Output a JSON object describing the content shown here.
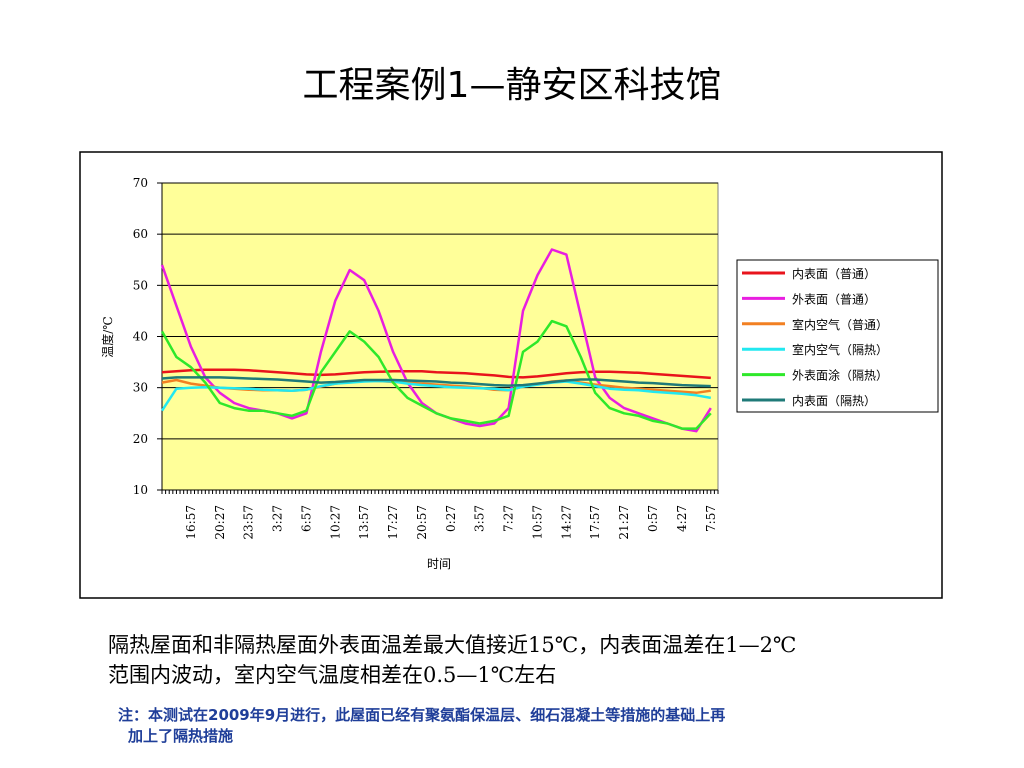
{
  "title": "工程案例1—静安区科技馆",
  "chart_data": {
    "type": "line",
    "ylabel": "温度/℃",
    "xlabel": "时间",
    "ylim": [
      10,
      70
    ],
    "yticks": [
      10,
      20,
      30,
      40,
      50,
      60,
      70
    ],
    "grid": true,
    "plot_color": "#ffff99",
    "categories": [
      null,
      null,
      "16:57",
      null,
      "20:27",
      null,
      "23:57",
      null,
      "3:27",
      null,
      "6:57",
      null,
      "10:27",
      null,
      "13:57",
      null,
      "17:27",
      null,
      "20:57",
      null,
      "0:27",
      null,
      "3:57",
      null,
      "7:27",
      null,
      "10:57",
      null,
      "14:27",
      null,
      "17:57",
      null,
      "21:27",
      null,
      "0:57",
      null,
      "4:27",
      null,
      "7:57"
    ],
    "series": [
      {
        "name": "内表面（普通）",
        "color": "#e8141c",
        "values": [
          33,
          33.2,
          33.4,
          33.5,
          33.5,
          33.5,
          33.4,
          33.2,
          33,
          32.8,
          32.6,
          32.5,
          32.6,
          32.8,
          33,
          33.1,
          33.2,
          33.2,
          33.2,
          33,
          32.9,
          32.8,
          32.6,
          32.4,
          32.1,
          32,
          32.2,
          32.5,
          32.8,
          33,
          33.1,
          33.1,
          33,
          32.9,
          32.7,
          32.5,
          32.3,
          32.1,
          31.9
        ]
      },
      {
        "name": "外表面（普通）",
        "color": "#e81ee0",
        "values": [
          54,
          46,
          38,
          32,
          29,
          27,
          26,
          25.5,
          25,
          24,
          25,
          37,
          47,
          53,
          51,
          45,
          37,
          31,
          27,
          25,
          24,
          23,
          22.5,
          23,
          26,
          45,
          52,
          57,
          56,
          44,
          32,
          28,
          26,
          25,
          24,
          23,
          22,
          21.5,
          26
        ]
      },
      {
        "name": "室内空气（普通）",
        "color": "#f28022",
        "values": [
          31,
          31.5,
          30.8,
          30.4,
          30,
          29.8,
          29.6,
          29.5,
          29.5,
          29.4,
          29.6,
          30.2,
          30.8,
          31.2,
          31.4,
          31.3,
          31.1,
          31,
          30.8,
          30.6,
          30.4,
          30.2,
          30,
          29.6,
          29.5,
          30.2,
          30.7,
          31.2,
          31.4,
          31,
          30.6,
          30.3,
          30,
          29.8,
          29.6,
          29.4,
          29.2,
          29,
          29.4
        ]
      },
      {
        "name": "室内空气（隔热）",
        "color": "#22e8f0",
        "values": [
          25.5,
          29.8,
          30,
          30.1,
          30,
          29.9,
          29.8,
          29.6,
          29.5,
          29.4,
          29.6,
          30.3,
          30.8,
          31,
          31.2,
          31.3,
          31.2,
          30.8,
          30.5,
          30.3,
          30.1,
          30,
          29.9,
          29.8,
          29.5,
          30.2,
          30.6,
          31,
          31.2,
          30.8,
          30.3,
          29.8,
          29.6,
          29.5,
          29.2,
          29,
          28.8,
          28.5,
          28
        ]
      },
      {
        "name": "外表面涂（隔热）",
        "color": "#2ee82a",
        "values": [
          41,
          36,
          34,
          31,
          27,
          26,
          25.5,
          25.5,
          25,
          24.5,
          25.5,
          33,
          37,
          41,
          39,
          36,
          31,
          28,
          26.5,
          25,
          24,
          23.5,
          23,
          23.5,
          24.5,
          37,
          39,
          43,
          42,
          36,
          29,
          26,
          25,
          24.5,
          23.5,
          23,
          22,
          22,
          25
        ]
      },
      {
        "name": "内表面（隔热）",
        "color": "#1f7a78",
        "values": [
          31.8,
          32,
          32,
          32,
          32,
          31.9,
          31.8,
          31.7,
          31.6,
          31.4,
          31.2,
          31,
          31.1,
          31.3,
          31.5,
          31.5,
          31.5,
          31.4,
          31.3,
          31.2,
          31,
          30.9,
          30.7,
          30.5,
          30.4,
          30.5,
          30.8,
          31.1,
          31.4,
          31.6,
          31.6,
          31.4,
          31.2,
          31,
          30.9,
          30.7,
          30.5,
          30.4,
          30.3
        ]
      }
    ]
  },
  "body": {
    "lines": [
      "隔热屋面和非隔热屋面外表面温差最大值接近15℃，内表面温差在1—2℃",
      "范围内波动，室内空气温度相差在0.5—1℃左右"
    ]
  },
  "note": {
    "lines": [
      "注：本测试在2009年9月进行，此屋面已经有聚氨酯保温层、细石混凝土等措施的基础上再",
      "加上了隔热措施"
    ]
  }
}
